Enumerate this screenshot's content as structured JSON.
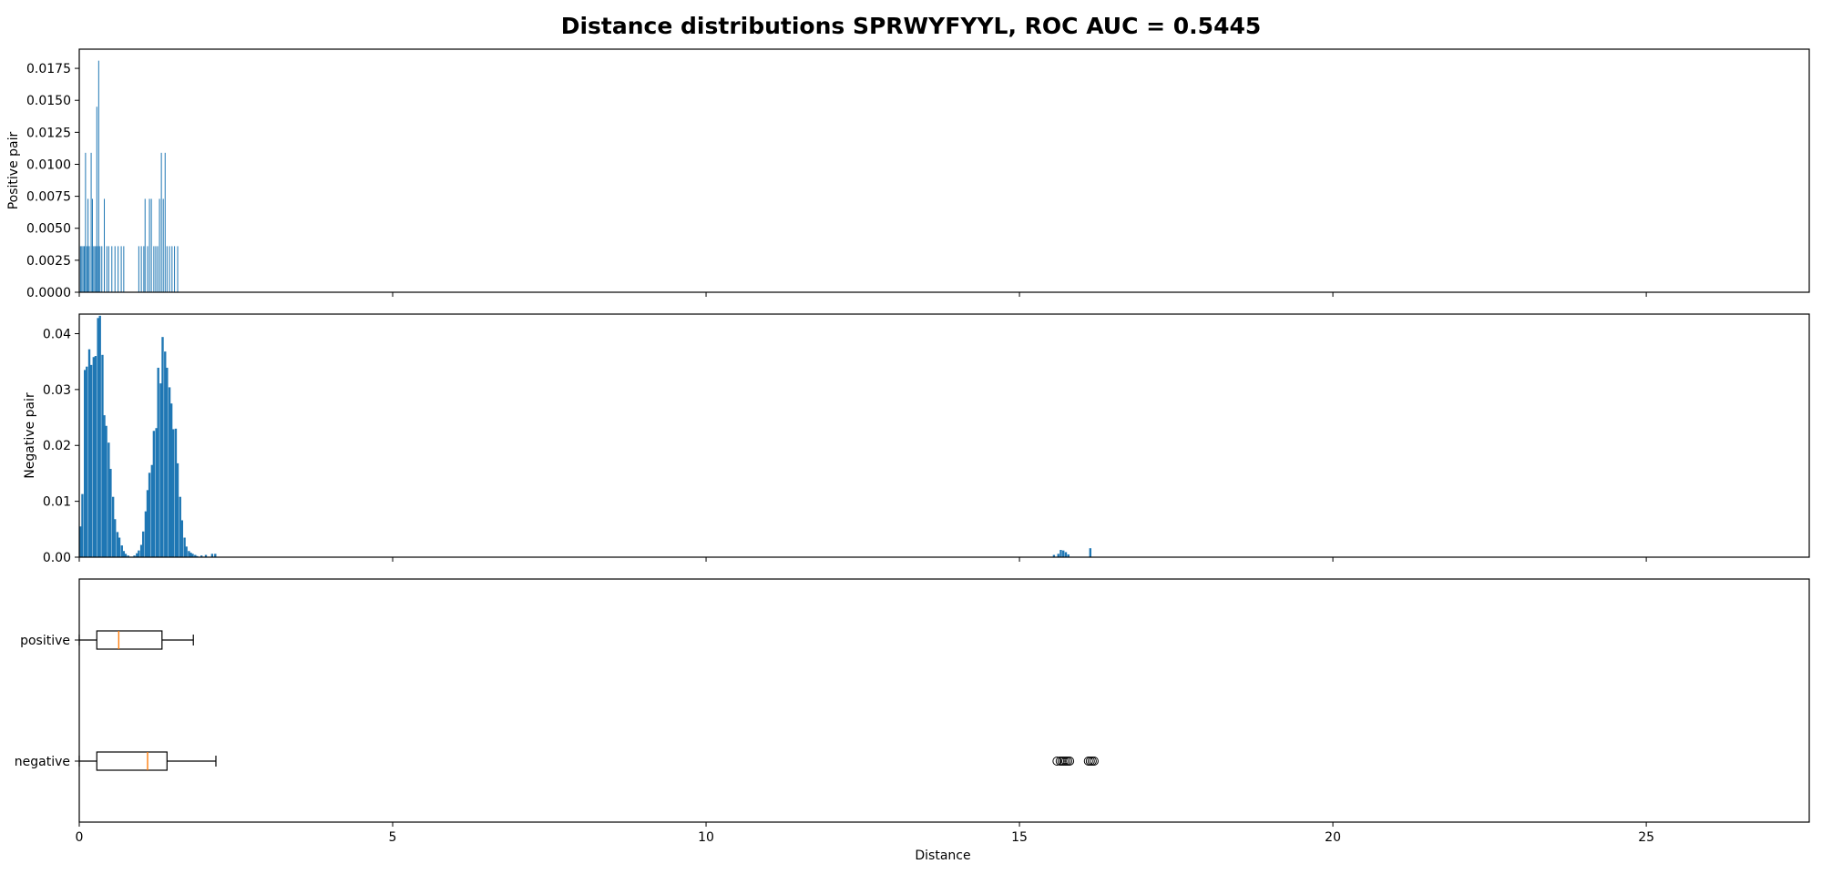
{
  "chart_data": {
    "type": "histogram+boxplot",
    "title": "Distance distributions SPRWYFYYL, ROC AUC = 0.5445",
    "xlabel": "Distance",
    "xlim": [
      0,
      27.6
    ],
    "x_ticks": [
      0,
      5,
      10,
      15,
      20,
      25
    ],
    "bar_color": "#1f77b4",
    "median_color": "#ff7f0e",
    "panels": [
      {
        "name": "positive-histogram",
        "ylabel": "Positive pair",
        "ylim": [
          0,
          0.019
        ],
        "y_ticks": [
          "0.0000",
          "0.0025",
          "0.0050",
          "0.0075",
          "0.0100",
          "0.0125",
          "0.0150",
          "0.0175"
        ],
        "y_tick_values": [
          0,
          0.0025,
          0.005,
          0.0075,
          0.01,
          0.0125,
          0.015,
          0.0175
        ],
        "bin_width": 0.008,
        "bars": [
          [
            0.02,
            0.0036
          ],
          [
            0.04,
            0.0036
          ],
          [
            0.06,
            0.0036
          ],
          [
            0.08,
            0.0036
          ],
          [
            0.1,
            0.0036
          ],
          [
            0.12,
            0.0036
          ],
          [
            0.14,
            0.0036
          ],
          [
            0.16,
            0.0036
          ],
          [
            0.19,
            0.0036
          ],
          [
            0.21,
            0.0073
          ],
          [
            0.23,
            0.0036
          ],
          [
            0.25,
            0.0036
          ],
          [
            0.27,
            0.0036
          ],
          [
            0.3,
            0.0036
          ],
          [
            0.33,
            0.0036
          ],
          [
            0.36,
            0.0036
          ],
          [
            0.1,
            0.0109
          ],
          [
            0.14,
            0.0073
          ],
          [
            0.19,
            0.0109
          ],
          [
            0.28,
            0.0145
          ],
          [
            0.31,
            0.0181
          ],
          [
            0.4,
            0.0073
          ],
          [
            0.44,
            0.0036
          ],
          [
            0.47,
            0.0036
          ],
          [
            0.52,
            0.0036
          ],
          [
            0.57,
            0.0036
          ],
          [
            0.62,
            0.0036
          ],
          [
            0.67,
            0.0036
          ],
          [
            0.71,
            0.0036
          ],
          [
            0.95,
            0.0036
          ],
          [
            0.99,
            0.0036
          ],
          [
            1.03,
            0.0036
          ],
          [
            1.05,
            0.0073
          ],
          [
            1.09,
            0.0036
          ],
          [
            1.12,
            0.0073
          ],
          [
            1.15,
            0.0073
          ],
          [
            1.19,
            0.0036
          ],
          [
            1.22,
            0.0036
          ],
          [
            1.25,
            0.0036
          ],
          [
            1.28,
            0.0073
          ],
          [
            1.31,
            0.0109
          ],
          [
            1.34,
            0.0073
          ],
          [
            1.37,
            0.0109
          ],
          [
            1.4,
            0.0036
          ],
          [
            1.44,
            0.0036
          ],
          [
            1.48,
            0.0036
          ],
          [
            1.52,
            0.0036
          ],
          [
            1.57,
            0.0036
          ]
        ]
      },
      {
        "name": "negative-histogram",
        "ylabel": "Negative pair",
        "ylim": [
          0,
          0.0435
        ],
        "y_ticks": [
          "0.00",
          "0.01",
          "0.02",
          "0.03",
          "0.04"
        ],
        "y_tick_values": [
          0,
          0.01,
          0.02,
          0.03,
          0.04
        ],
        "bin_width": 0.0345,
        "bars": [
          [
            0.02,
            0.0055
          ],
          [
            0.05,
            0.0113
          ],
          [
            0.09,
            0.0335
          ],
          [
            0.12,
            0.0341
          ],
          [
            0.16,
            0.0372
          ],
          [
            0.19,
            0.0344
          ],
          [
            0.23,
            0.0358
          ],
          [
            0.26,
            0.036
          ],
          [
            0.3,
            0.0428
          ],
          [
            0.33,
            0.0432
          ],
          [
            0.37,
            0.0362
          ],
          [
            0.4,
            0.0254
          ],
          [
            0.43,
            0.0235
          ],
          [
            0.47,
            0.0205
          ],
          [
            0.5,
            0.0158
          ],
          [
            0.54,
            0.0108
          ],
          [
            0.57,
            0.0068
          ],
          [
            0.61,
            0.0045
          ],
          [
            0.64,
            0.0035
          ],
          [
            0.68,
            0.0021
          ],
          [
            0.71,
            0.0011
          ],
          [
            0.74,
            0.0006
          ],
          [
            0.78,
            0.0003
          ],
          [
            0.81,
            0.0001
          ],
          [
            0.85,
            0.0001
          ],
          [
            0.88,
            0.0003
          ],
          [
            0.92,
            0.0007
          ],
          [
            0.95,
            0.0012
          ],
          [
            0.99,
            0.0022
          ],
          [
            1.02,
            0.0046
          ],
          [
            1.06,
            0.0082
          ],
          [
            1.09,
            0.012
          ],
          [
            1.12,
            0.0151
          ],
          [
            1.16,
            0.0165
          ],
          [
            1.19,
            0.0226
          ],
          [
            1.23,
            0.0231
          ],
          [
            1.26,
            0.0339
          ],
          [
            1.3,
            0.0311
          ],
          [
            1.33,
            0.0394
          ],
          [
            1.37,
            0.0368
          ],
          [
            1.4,
            0.0339
          ],
          [
            1.44,
            0.0304
          ],
          [
            1.47,
            0.0275
          ],
          [
            1.5,
            0.0229
          ],
          [
            1.54,
            0.023
          ],
          [
            1.57,
            0.0168
          ],
          [
            1.61,
            0.0108
          ],
          [
            1.64,
            0.0066
          ],
          [
            1.68,
            0.0035
          ],
          [
            1.71,
            0.0019
          ],
          [
            1.75,
            0.0011
          ],
          [
            1.78,
            0.0008
          ],
          [
            1.81,
            0.0006
          ],
          [
            1.85,
            0.0004
          ],
          [
            1.88,
            0.0002
          ],
          [
            1.95,
            0.0003
          ],
          [
            2.02,
            0.0004
          ],
          [
            2.12,
            0.0006
          ],
          [
            2.17,
            0.0006
          ],
          [
            15.55,
            0.0004
          ],
          [
            15.62,
            0.0006
          ],
          [
            15.66,
            0.0013
          ],
          [
            15.7,
            0.0012
          ],
          [
            15.74,
            0.0009
          ],
          [
            15.78,
            0.0005
          ],
          [
            16.13,
            0.0016
          ]
        ]
      },
      {
        "name": "boxplot",
        "type": "boxplot",
        "categories": [
          "positive",
          "negative"
        ],
        "boxes": [
          {
            "label": "positive",
            "whislo": 0.0,
            "q1": 0.28,
            "med": 0.63,
            "q3": 1.32,
            "whishi": 1.82,
            "fliers": []
          },
          {
            "label": "negative",
            "whislo": 0.0,
            "q1": 0.28,
            "med": 1.09,
            "q3": 1.4,
            "whishi": 2.18,
            "fliers": [
              15.6,
              15.65,
              15.68,
              15.71,
              15.74,
              15.77,
              15.8,
              16.1,
              16.13,
              16.16,
              16.19
            ]
          }
        ]
      }
    ]
  }
}
